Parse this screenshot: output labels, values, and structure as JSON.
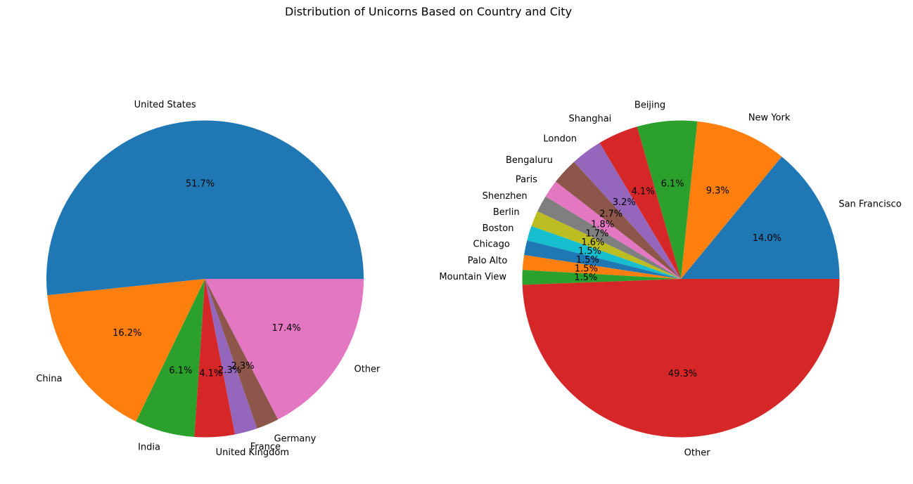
{
  "figure": {
    "title": "Distribution of Unicorns Based on Country and City"
  },
  "chart_data": [
    {
      "type": "pie",
      "name": "country",
      "title": "",
      "start_angle_deg": 0,
      "direction": "counterclockwise",
      "labels": [
        "United States",
        "China",
        "India",
        "United Kingdom",
        "France",
        "Germany",
        "Other"
      ],
      "values": [
        51.7,
        16.2,
        6.1,
        4.1,
        2.3,
        2.3,
        17.4
      ],
      "percent_labels": [
        "51.7%",
        "16.2%",
        "6.1%",
        "4.1%",
        "2.3%",
        "2.3%",
        "17.4%"
      ],
      "colors": [
        "#1f77b4",
        "#ff7f0e",
        "#2ca02c",
        "#d62728",
        "#9467bd",
        "#8c564b",
        "#e377c2"
      ]
    },
    {
      "type": "pie",
      "name": "city",
      "title": "",
      "start_angle_deg": 0,
      "direction": "counterclockwise",
      "labels": [
        "San Francisco",
        "New York",
        "Beijing",
        "Shanghai",
        "London",
        "Bengaluru",
        "Paris",
        "Shenzhen",
        "Berlin",
        "Boston",
        "Chicago",
        "Palo Alto",
        "Mountain View",
        "Other"
      ],
      "values": [
        14.0,
        9.3,
        6.1,
        4.1,
        3.2,
        2.7,
        1.8,
        1.7,
        1.6,
        1.5,
        1.5,
        1.5,
        1.5,
        49.3
      ],
      "percent_labels": [
        "14.0%",
        "9.3%",
        "6.1%",
        "4.1%",
        "3.2%",
        "2.7%",
        "1.8%",
        "1.7%",
        "1.6%",
        "1.5%",
        "1.5%",
        "1.5%",
        "1.5%",
        "49.3%"
      ],
      "colors": [
        "#1f77b4",
        "#ff7f0e",
        "#2ca02c",
        "#d62728",
        "#9467bd",
        "#8c564b",
        "#e377c2",
        "#7f7f7f",
        "#bcbd22",
        "#17becf",
        "#1f77b4",
        "#ff7f0e",
        "#2ca02c",
        "#d62728"
      ]
    }
  ]
}
